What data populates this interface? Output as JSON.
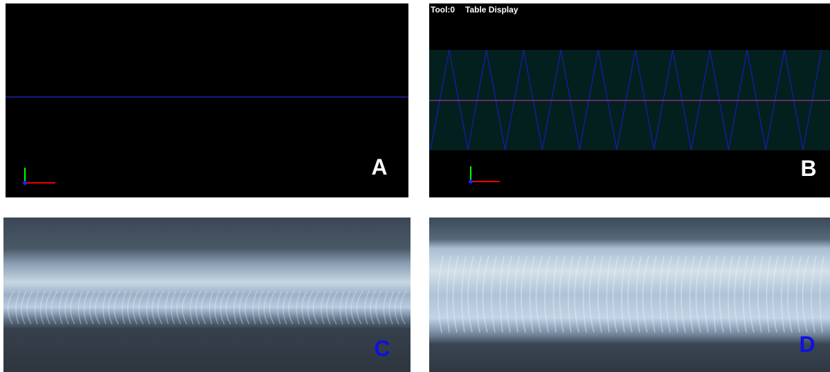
{
  "panels": [
    {
      "label": "A"
    },
    {
      "label": "B",
      "header": {
        "tool": "Tool:0",
        "mode": "Table Display"
      }
    },
    {
      "label": "C"
    },
    {
      "label": "D"
    }
  ]
}
